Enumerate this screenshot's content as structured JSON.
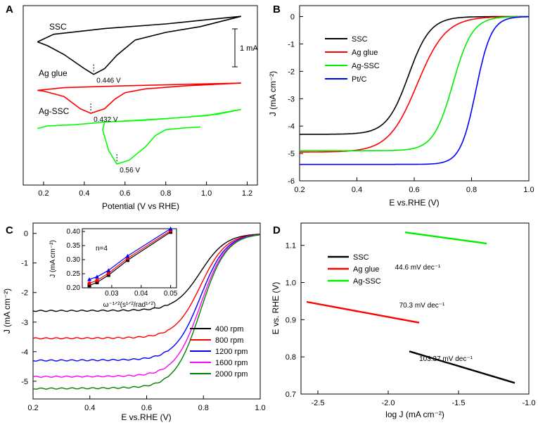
{
  "chart_data": [
    {
      "panel": "A",
      "type": "line",
      "xlabel": "Potential (V vs RHE)",
      "ylabel": "",
      "xlim": [
        0.1,
        1.25
      ],
      "xticks": [
        "0.2",
        "0.4",
        "0.6",
        "0.8",
        "1.0",
        "1.2"
      ],
      "scale_bar": "1 mA",
      "series": [
        {
          "name": "SSC",
          "color": "#000000",
          "offset": 0,
          "fwd": [
            [
              0.17,
              1.15
            ],
            [
              0.25,
              1.35
            ],
            [
              0.5,
              1.5
            ],
            [
              0.8,
              1.62
            ],
            [
              1.0,
              1.73
            ],
            [
              1.17,
              1.82
            ]
          ],
          "rev": [
            [
              1.17,
              1.82
            ],
            [
              0.97,
              1.55
            ],
            [
              0.8,
              1.4
            ],
            [
              0.65,
              1.2
            ],
            [
              0.56,
              0.8
            ],
            [
              0.5,
              0.45
            ],
            [
              0.446,
              0.3
            ],
            [
              0.4,
              0.45
            ],
            [
              0.3,
              0.82
            ],
            [
              0.22,
              1.05
            ],
            [
              0.17,
              1.15
            ]
          ],
          "peak": {
            "x": 0.446,
            "y": 0.3,
            "label": "0.446 V"
          }
        },
        {
          "name": "Ag glue",
          "color": "#ff0000",
          "offset": 0,
          "fwd": [
            [
              0.17,
              -0.12
            ],
            [
              0.3,
              -0.05
            ],
            [
              0.6,
              0.0
            ],
            [
              0.9,
              0.04
            ],
            [
              1.17,
              0.07
            ]
          ],
          "rev": [
            [
              1.17,
              0.07
            ],
            [
              0.9,
              0.0
            ],
            [
              0.7,
              -0.08
            ],
            [
              0.6,
              -0.18
            ],
            [
              0.55,
              -0.35
            ],
            [
              0.5,
              -0.6
            ],
            [
              0.432,
              -0.72
            ],
            [
              0.38,
              -0.6
            ],
            [
              0.3,
              -0.28
            ],
            [
              0.2,
              -0.14
            ],
            [
              0.17,
              -0.12
            ]
          ],
          "peak": {
            "x": 0.432,
            "y": -0.72,
            "label": "0.432 V"
          }
        },
        {
          "name": "Ag-SSC",
          "color": "#00ff00",
          "offset": 0,
          "fwd": [
            [
              0.17,
              -1.12
            ],
            [
              0.22,
              -1.05
            ],
            [
              0.35,
              -1.02
            ],
            [
              0.5,
              -0.95
            ],
            [
              0.7,
              -0.9
            ],
            [
              0.9,
              -0.82
            ],
            [
              1.05,
              -0.75
            ],
            [
              1.17,
              -0.62
            ]
          ],
          "rev": [
            [
              1.17,
              -0.62
            ],
            [
              1.0,
              -0.78
            ],
            [
              0.8,
              -0.86
            ],
            [
              0.6,
              -0.92
            ],
            [
              0.5,
              -0.95
            ],
            [
              0.49,
              -1.15
            ],
            [
              0.52,
              -1.7
            ],
            [
              0.56,
              -2.05
            ],
            [
              0.62,
              -1.95
            ],
            [
              0.7,
              -1.6
            ],
            [
              0.75,
              -1.3
            ],
            [
              0.8,
              -1.15
            ],
            [
              0.9,
              -1.1
            ],
            [
              0.97,
              -1.08
            ]
          ],
          "peak": {
            "x": 0.56,
            "y": -2.05,
            "label": "0.56 V"
          }
        }
      ]
    },
    {
      "panel": "B",
      "type": "line",
      "xlabel": "E vs.RHE (V)",
      "ylabel": "J (mA cm⁻²)",
      "xlim": [
        0.2,
        1.0
      ],
      "ylim": [
        -6,
        0.4
      ],
      "xticks": [
        "0.2",
        "0.4",
        "0.6",
        "0.8",
        "1.0"
      ],
      "yticks": [
        "0",
        "-1",
        "-2",
        "-3",
        "-4",
        "-5",
        "-6"
      ],
      "series": [
        {
          "name": "SSC",
          "color": "#000000",
          "jlim": -4.3,
          "e_half": 0.58,
          "k": 0.038
        },
        {
          "name": "Ag glue",
          "color": "#ff0000",
          "jlim": -4.95,
          "e_half": 0.61,
          "k": 0.05
        },
        {
          "name": "Ag-SSC",
          "color": "#00ee00",
          "jlim": -4.9,
          "e_half": 0.735,
          "k": 0.034
        },
        {
          "name": "Pt/C",
          "color": "#0000ff",
          "jlim": -5.4,
          "e_half": 0.815,
          "k": 0.027
        }
      ]
    },
    {
      "panel": "C",
      "type": "line",
      "xlabel": "E vs.RHE (V)",
      "ylabel": "J (mA cm⁻²)",
      "xlim": [
        0.2,
        1.0
      ],
      "ylim": [
        -5.6,
        0.35
      ],
      "xticks": [
        "0.2",
        "0.4",
        "0.6",
        "0.8",
        "1.0"
      ],
      "yticks": [
        "0",
        "-1",
        "-2",
        "-3",
        "-4",
        "-5"
      ],
      "series": [
        {
          "name": "400 rpm",
          "color": "#000000",
          "jlim": -2.62
        },
        {
          "name": "800 rpm",
          "color": "#ff0000",
          "jlim": -3.55
        },
        {
          "name": "1200 rpm",
          "color": "#0000ff",
          "jlim": -4.3
        },
        {
          "name": "1600 rpm",
          "color": "#ff00ff",
          "jlim": -4.85
        },
        {
          "name": "2000 rpm",
          "color": "#008000",
          "jlim": -5.25
        }
      ],
      "inset": {
        "type": "scatter",
        "xlabel": "ω⁻¹ᐟ²(s¹ᐟ²/rad¹ᐟ²)",
        "ylabel": "J (mA cm⁻²)",
        "annotation": "n=4",
        "xlim": [
          0.02,
          0.052
        ],
        "ylim": [
          0.2,
          0.41
        ],
        "xticks": [
          "0.03",
          "0.04",
          "0.05"
        ],
        "yticks": [
          "0.20",
          "0.25",
          "0.30",
          "0.35",
          "0.40"
        ],
        "x": [
          0.0224,
          0.025,
          0.0289,
          0.0354,
          0.05
        ],
        "series": [
          {
            "color": "#000000",
            "marker": "square",
            "values": [
              0.208,
              0.219,
              0.245,
              0.298,
              0.398
            ]
          },
          {
            "color": "#ff0000",
            "marker": "circle",
            "values": [
              0.216,
              0.226,
              0.252,
              0.305,
              0.403
            ]
          },
          {
            "color": "#0000ff",
            "marker": "triangle",
            "values": [
              0.23,
              0.239,
              0.262,
              0.313,
              0.41
            ]
          }
        ]
      }
    },
    {
      "panel": "D",
      "type": "line",
      "xlabel": "log J (mA cm⁻²)",
      "ylabel": "E vs. RHE (V)",
      "xlim": [
        -2.62,
        -1.0
      ],
      "ylim": [
        0.7,
        1.16
      ],
      "xticks": [
        "-2.5",
        "-2.0",
        "-1.5",
        "-1.0"
      ],
      "yticks": [
        "0.7",
        "0.8",
        "0.9",
        "1.0",
        "1.1"
      ],
      "series": [
        {
          "name": "SSC",
          "color": "#000000",
          "x": [
            -1.85,
            -1.1
          ],
          "y": [
            0.815,
            0.73
          ],
          "slope_label": "103.37 mV dec⁻¹"
        },
        {
          "name": "Ag glue",
          "color": "#ff0000",
          "x": [
            -2.58,
            -1.78
          ],
          "y": [
            0.948,
            0.892
          ],
          "slope_label": "70.3 mV dec⁻¹"
        },
        {
          "name": "Ag-SSC",
          "color": "#00ee00",
          "x": [
            -1.88,
            -1.3
          ],
          "y": [
            1.135,
            1.105
          ],
          "slope_label": "44.6 mV dec⁻¹"
        }
      ]
    }
  ],
  "panel_letters": [
    "A",
    "B",
    "C",
    "D"
  ]
}
